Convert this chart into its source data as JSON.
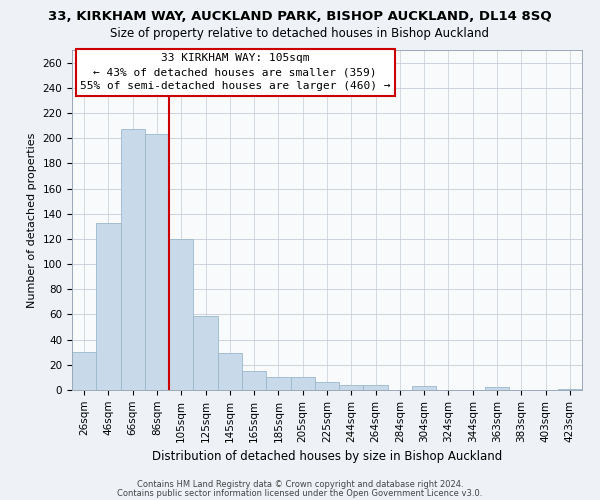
{
  "title": "33, KIRKHAM WAY, AUCKLAND PARK, BISHOP AUCKLAND, DL14 8SQ",
  "subtitle": "Size of property relative to detached houses in Bishop Auckland",
  "xlabel": "Distribution of detached houses by size in Bishop Auckland",
  "ylabel": "Number of detached properties",
  "bar_labels": [
    "26sqm",
    "46sqm",
    "66sqm",
    "86sqm",
    "105sqm",
    "125sqm",
    "145sqm",
    "165sqm",
    "185sqm",
    "205sqm",
    "225sqm",
    "244sqm",
    "264sqm",
    "284sqm",
    "304sqm",
    "324sqm",
    "344sqm",
    "363sqm",
    "383sqm",
    "403sqm",
    "423sqm"
  ],
  "bar_values": [
    30,
    133,
    207,
    203,
    120,
    59,
    29,
    15,
    10,
    10,
    6,
    4,
    4,
    0,
    3,
    0,
    0,
    2,
    0,
    0,
    1
  ],
  "bar_color": "#c8daea",
  "bar_edge_color": "#9ab8cc",
  "vline_x_index": 3,
  "vline_color": "#cc0000",
  "annotation_title": "33 KIRKHAM WAY: 105sqm",
  "annotation_line1": "← 43% of detached houses are smaller (359)",
  "annotation_line2": "55% of semi-detached houses are larger (460) →",
  "annotation_box_color": "#ffffff",
  "annotation_box_edge": "#cc0000",
  "ylim": [
    0,
    270
  ],
  "yticks": [
    0,
    20,
    40,
    60,
    80,
    100,
    120,
    140,
    160,
    180,
    200,
    220,
    240,
    260
  ],
  "footer1": "Contains HM Land Registry data © Crown copyright and database right 2024.",
  "footer2": "Contains public sector information licensed under the Open Government Licence v3.0.",
  "bg_color": "#eef2f7",
  "plot_bg_color": "#f8fafc",
  "grid_color": "#c5cdd8",
  "title_fontsize": 9.5,
  "subtitle_fontsize": 8.5,
  "ylabel_fontsize": 8,
  "xlabel_fontsize": 8.5,
  "tick_fontsize": 7.5,
  "footer_fontsize": 6
}
